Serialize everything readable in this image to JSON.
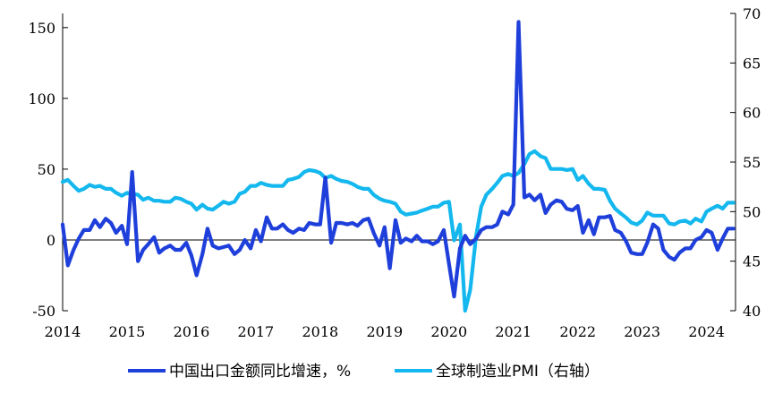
{
  "chart_data": {
    "type": "line",
    "title": "",
    "xlabel": "",
    "ylabel": "",
    "ylim": [
      -50,
      160
    ],
    "y2lim": [
      40,
      70
    ],
    "yticks": [
      -50,
      0,
      50,
      100,
      150
    ],
    "y2ticks": [
      40,
      45,
      50,
      55,
      60,
      65,
      70
    ],
    "xticks": [
      "2014",
      "2015",
      "2016",
      "2017",
      "2018",
      "2019",
      "2020",
      "2021",
      "2022",
      "2023",
      "2024"
    ],
    "x_start": 2014.0,
    "x_end": 2024.45,
    "colors": {
      "export": "#1f3fdb",
      "pmi": "#14b8ee"
    },
    "series": [
      {
        "name": "中国出口金额同比增速，%",
        "axis": "left",
        "color": "#1f3fdb",
        "x": [
          2014.0,
          2014.08,
          2014.17,
          2014.25,
          2014.33,
          2014.42,
          2014.5,
          2014.58,
          2014.67,
          2014.75,
          2014.83,
          2014.92,
          2015.0,
          2015.08,
          2015.17,
          2015.25,
          2015.33,
          2015.42,
          2015.5,
          2015.58,
          2015.67,
          2015.75,
          2015.83,
          2015.92,
          2016.0,
          2016.08,
          2016.17,
          2016.25,
          2016.33,
          2016.42,
          2016.5,
          2016.58,
          2016.67,
          2016.75,
          2016.83,
          2016.92,
          2017.0,
          2017.08,
          2017.17,
          2017.25,
          2017.33,
          2017.42,
          2017.5,
          2017.58,
          2017.67,
          2017.75,
          2017.83,
          2017.92,
          2018.0,
          2018.08,
          2018.17,
          2018.25,
          2018.33,
          2018.42,
          2018.5,
          2018.58,
          2018.67,
          2018.75,
          2018.83,
          2018.92,
          2019.0,
          2019.08,
          2019.17,
          2019.25,
          2019.33,
          2019.42,
          2019.5,
          2019.58,
          2019.67,
          2019.75,
          2019.83,
          2019.92,
          2020.0,
          2020.08,
          2020.17,
          2020.25,
          2020.33,
          2020.42,
          2020.5,
          2020.58,
          2020.67,
          2020.75,
          2020.83,
          2020.92,
          2021.0,
          2021.08,
          2021.17,
          2021.25,
          2021.33,
          2021.42,
          2021.5,
          2021.58,
          2021.67,
          2021.75,
          2021.83,
          2021.92,
          2022.0,
          2022.08,
          2022.17,
          2022.25,
          2022.33,
          2022.42,
          2022.5,
          2022.58,
          2022.67,
          2022.75,
          2022.83,
          2022.92,
          2023.0,
          2023.08,
          2023.17,
          2023.25,
          2023.33,
          2023.42,
          2023.5,
          2023.58,
          2023.67,
          2023.75,
          2023.83,
          2023.92,
          2024.0,
          2024.08,
          2024.17,
          2024.25,
          2024.33,
          2024.42
        ],
        "values": [
          11,
          -18,
          -7,
          1,
          7,
          7,
          14,
          9,
          15,
          12,
          5,
          10,
          -3,
          48,
          -15,
          -7,
          -3,
          2,
          -9,
          -6,
          -4,
          -7,
          -7,
          -2,
          -11,
          -25,
          -10,
          8,
          -4,
          -6,
          -5,
          -4,
          -10,
          -7,
          0,
          -6,
          7,
          -1,
          16,
          8,
          8,
          11,
          7,
          5,
          8,
          7,
          12,
          11,
          11,
          44,
          -2,
          12,
          12,
          11,
          12,
          10,
          14,
          15,
          5,
          -4,
          9,
          -20,
          14,
          -2,
          1,
          -1,
          3,
          -1,
          -1,
          -3,
          -1,
          7,
          -17,
          -40,
          -6,
          3,
          -3,
          1,
          7,
          9,
          9,
          11,
          20,
          18,
          25,
          154,
          30,
          32,
          28,
          32,
          19,
          25,
          28,
          27,
          22,
          21,
          24,
          5,
          14,
          4,
          16,
          16,
          17,
          7,
          5,
          -1,
          -9,
          -10,
          -10,
          -2,
          11,
          8,
          -7,
          -12,
          -14,
          -9,
          -6,
          -6,
          0,
          2,
          7,
          5,
          -7,
          1,
          8,
          8
        ]
      },
      {
        "name": "全球制造业PMI（右轴）",
        "axis": "right",
        "color": "#14b8ee",
        "x": [
          2014.0,
          2014.08,
          2014.17,
          2014.25,
          2014.33,
          2014.42,
          2014.5,
          2014.58,
          2014.67,
          2014.75,
          2014.83,
          2014.92,
          2015.0,
          2015.08,
          2015.17,
          2015.25,
          2015.33,
          2015.42,
          2015.5,
          2015.58,
          2015.67,
          2015.75,
          2015.83,
          2015.92,
          2016.0,
          2016.08,
          2016.17,
          2016.25,
          2016.33,
          2016.42,
          2016.5,
          2016.58,
          2016.67,
          2016.75,
          2016.83,
          2016.92,
          2017.0,
          2017.08,
          2017.17,
          2017.25,
          2017.33,
          2017.42,
          2017.5,
          2017.58,
          2017.67,
          2017.75,
          2017.83,
          2017.92,
          2018.0,
          2018.08,
          2018.17,
          2018.25,
          2018.33,
          2018.42,
          2018.5,
          2018.58,
          2018.67,
          2018.75,
          2018.83,
          2018.92,
          2019.0,
          2019.08,
          2019.17,
          2019.25,
          2019.33,
          2019.42,
          2019.5,
          2019.58,
          2019.67,
          2019.75,
          2019.83,
          2019.92,
          2020.0,
          2020.08,
          2020.17,
          2020.25,
          2020.33,
          2020.42,
          2020.5,
          2020.58,
          2020.67,
          2020.75,
          2020.83,
          2020.92,
          2021.0,
          2021.08,
          2021.17,
          2021.25,
          2021.33,
          2021.42,
          2021.5,
          2021.58,
          2021.67,
          2021.75,
          2021.83,
          2021.92,
          2022.0,
          2022.08,
          2022.17,
          2022.25,
          2022.33,
          2022.42,
          2022.5,
          2022.58,
          2022.67,
          2022.75,
          2022.83,
          2022.92,
          2023.0,
          2023.08,
          2023.17,
          2023.25,
          2023.33,
          2023.42,
          2023.5,
          2023.58,
          2023.67,
          2023.75,
          2023.83,
          2023.92,
          2024.0,
          2024.08,
          2024.17,
          2024.25,
          2024.33,
          2024.42
        ],
        "values": [
          53.0,
          53.2,
          52.6,
          52.1,
          52.3,
          52.7,
          52.5,
          52.6,
          52.3,
          52.3,
          51.9,
          51.6,
          51.9,
          51.8,
          51.7,
          51.2,
          51.4,
          51.1,
          51.1,
          51.0,
          51.0,
          51.4,
          51.3,
          51.0,
          50.8,
          50.2,
          50.7,
          50.3,
          50.2,
          50.6,
          51.0,
          50.8,
          51.0,
          51.8,
          52.0,
          52.6,
          52.6,
          52.9,
          52.7,
          52.6,
          52.6,
          52.6,
          53.2,
          53.3,
          53.5,
          54.0,
          54.2,
          54.1,
          53.9,
          53.4,
          53.6,
          53.3,
          53.1,
          53.0,
          52.8,
          52.5,
          52.3,
          52.3,
          51.7,
          51.3,
          51.1,
          51.0,
          50.8,
          50.0,
          49.7,
          49.8,
          49.9,
          50.1,
          50.3,
          50.5,
          50.5,
          50.9,
          51.0,
          47.1,
          48.7,
          40.0,
          42.1,
          47.5,
          50.5,
          51.7,
          52.3,
          52.9,
          53.6,
          53.8,
          53.6,
          53.9,
          54.8,
          55.8,
          56.1,
          55.6,
          55.4,
          54.3,
          54.3,
          54.3,
          54.2,
          54.3,
          53.2,
          53.6,
          52.8,
          52.3,
          52.3,
          52.2,
          51.1,
          50.3,
          49.8,
          49.4,
          48.9,
          48.7,
          49.1,
          49.9,
          49.6,
          49.6,
          49.6,
          48.8,
          48.7,
          49.0,
          49.1,
          48.8,
          49.3,
          49.0,
          50.0,
          50.3,
          50.6,
          50.3,
          50.9,
          50.9
        ]
      }
    ]
  }
}
